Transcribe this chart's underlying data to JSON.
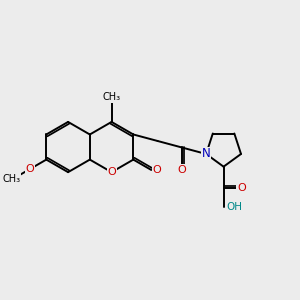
{
  "bg": "#ececec",
  "bw": 1.4,
  "dbo": 0.07,
  "bl": 0.85,
  "fs": 8.0,
  "Oc": "#cc0000",
  "Nc": "#0000bb",
  "Hc": "#008888",
  "Cc": "#000000",
  "fw": 3.0,
  "fh": 3.0,
  "dpi": 100,
  "xlim": [
    0,
    10
  ],
  "ylim": [
    0,
    10
  ]
}
